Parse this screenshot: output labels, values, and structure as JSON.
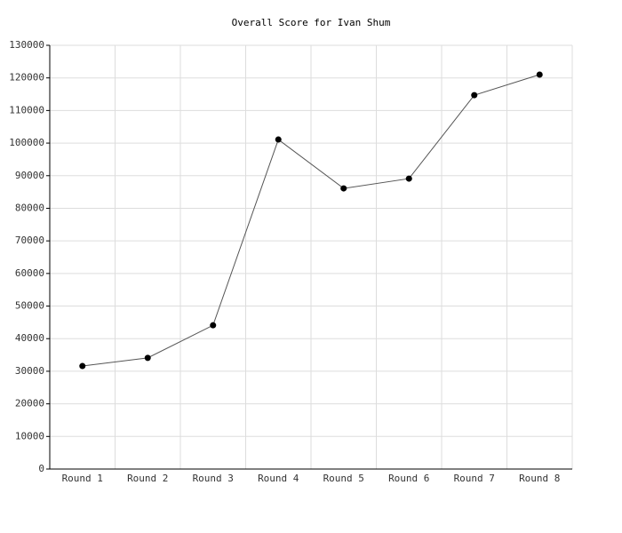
{
  "chart_data": {
    "type": "line",
    "title": "Overall Score for Ivan Shum",
    "categories": [
      "Round 1",
      "Round 2",
      "Round 3",
      "Round 4",
      "Round 5",
      "Round 6",
      "Round 7",
      "Round 8"
    ],
    "values": [
      31600,
      34100,
      44100,
      101100,
      86100,
      89100,
      114700,
      121000
    ],
    "color": "#555555",
    "ylim": [
      0,
      130000
    ],
    "yticks": [
      0,
      10000,
      20000,
      30000,
      40000,
      50000,
      60000,
      70000,
      80000,
      90000,
      100000,
      110000,
      120000,
      130000
    ],
    "grid": true
  }
}
